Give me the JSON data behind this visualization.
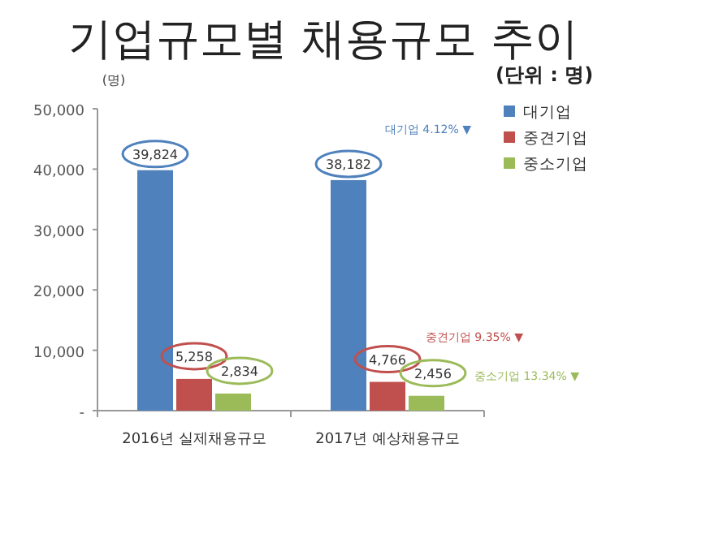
{
  "chart_data": {
    "type": "bar",
    "title": "기업규모별 채용규모 추이",
    "ylabel": "(명)",
    "categories": [
      "2016년 실제채용규모",
      "2017년 예상채용규모"
    ],
    "series": [
      {
        "name": "대기업",
        "color": "#4f81bd",
        "values": [
          39824,
          38182
        ],
        "value_labels": [
          "39,824",
          "38,182"
        ]
      },
      {
        "name": "중견기업",
        "color": "#c0504d",
        "values": [
          5258,
          4766
        ],
        "value_labels": [
          "5,258",
          "4,766"
        ]
      },
      {
        "name": "중소기업",
        "color": "#9bbb59",
        "values": [
          2834,
          2456
        ],
        "value_labels": [
          "2,834",
          "2,456"
        ]
      }
    ],
    "ylim": [
      0,
      50000
    ],
    "yticks": [
      {
        "value": 0,
        "label": "-"
      },
      {
        "value": 10000,
        "label": "10,000"
      },
      {
        "value": 20000,
        "label": "20,000"
      },
      {
        "value": 30000,
        "label": "30,000"
      },
      {
        "value": 40000,
        "label": "40,000"
      },
      {
        "value": 50000,
        "label": "50,000"
      }
    ],
    "legend": "top right",
    "grid": false,
    "annotations": [
      "(단위 : 명)",
      "대기업 4.12% ▼",
      "중견기업 9.35% ▼",
      "중소기업 13.34% ▼"
    ]
  }
}
